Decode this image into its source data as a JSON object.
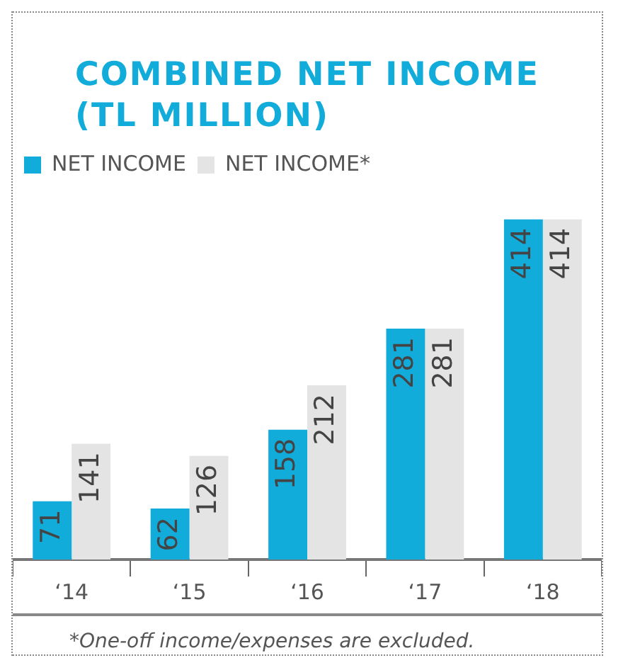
{
  "chart_data": {
    "type": "bar",
    "title": "COMBINED NET INCOME (TL MILLION)",
    "categories": [
      "‘14",
      "‘15",
      "‘16",
      "‘17",
      "‘18"
    ],
    "series": [
      {
        "name": "NET INCOME",
        "color": "#12acdb",
        "values": [
          71,
          62,
          158,
          281,
          414
        ]
      },
      {
        "name": "NET INCOME*",
        "color": "#e4e4e4",
        "values": [
          141,
          126,
          212,
          281,
          414
        ]
      }
    ],
    "data_labels": true,
    "legend": "top left",
    "grid": false,
    "annotations": [
      "*One-off income/expenses are excluded."
    ]
  }
}
